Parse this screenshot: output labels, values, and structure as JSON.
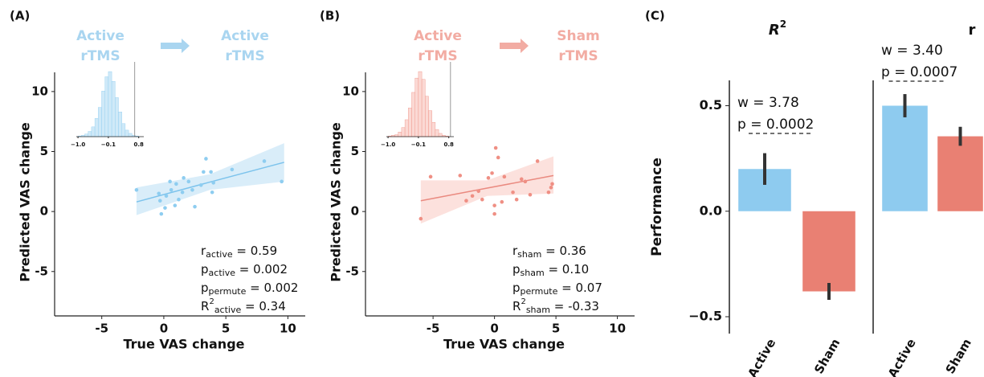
{
  "chart_data": [
    {
      "type": "scatter",
      "panel": "(A)",
      "header": {
        "from": [
          "Active",
          "rTMS"
        ],
        "to": [
          "Active",
          "rTMS"
        ],
        "color": "#a9d5f0"
      },
      "color": "#8ecdf0",
      "fit_color": "#7cc3ec",
      "band_color": "#cfe9f8",
      "xlabel": "True VAS change",
      "ylabel": "Predicted VAS change",
      "xlim": [
        -8.8,
        11.4
      ],
      "ylim": [
        -8.7,
        11.6
      ],
      "xticks": [
        -5,
        0,
        5,
        10
      ],
      "yticks": [
        -5,
        0,
        5,
        10
      ],
      "x": [
        -2.2,
        -0.2,
        0.1,
        -0.3,
        0.2,
        0.6,
        -0.4,
        0.9,
        1.2,
        1.5,
        1.0,
        2.0,
        2.3,
        2.5,
        1.6,
        3.2,
        3.4,
        3.0,
        3.8,
        3.9,
        4.0,
        5.5,
        8.1,
        9.5,
        0.5
      ],
      "y": [
        1.8,
        -0.2,
        0.3,
        0.9,
        1.3,
        1.8,
        1.5,
        0.5,
        1.0,
        1.6,
        2.3,
        2.5,
        1.8,
        0.4,
        2.8,
        3.3,
        4.4,
        2.2,
        3.3,
        1.6,
        2.4,
        3.5,
        4.2,
        2.5,
        2.5
      ],
      "fit": {
        "x": [
          -2.2,
          3.7,
          9.7
        ],
        "y": [
          0.8,
          2.45,
          4.1
        ],
        "lower": [
          -0.3,
          1.8,
          2.5
        ],
        "upper": [
          2.0,
          3.1,
          5.7
        ]
      },
      "stats": [
        {
          "symbol": "r",
          "sub": "active",
          "text": " = 0.59"
        },
        {
          "symbol": "p",
          "sub": "active",
          "text": " = 0.002"
        },
        {
          "symbol": "p",
          "sub": "permute",
          "text": " = 0.002"
        },
        {
          "symbol": "R",
          "sup": "2",
          "sub": "active",
          "text": " = 0.34"
        }
      ],
      "inset": {
        "bins": [
          -1.0,
          -0.9,
          -0.8,
          -0.7,
          -0.6,
          -0.5,
          -0.4,
          -0.3,
          -0.2,
          -0.1,
          0.0,
          0.1,
          0.2,
          0.3,
          0.4,
          0.5,
          0.6,
          0.7,
          0.8
        ],
        "counts": [
          1,
          2,
          4,
          8,
          15,
          28,
          45,
          70,
          92,
          100,
          85,
          60,
          38,
          20,
          10,
          5,
          2,
          1
        ],
        "xlim": [
          -1.05,
          0.95
        ],
        "ylim": [
          0,
          105
        ],
        "xticks": [
          {
            "value": -1.0,
            "label": "−1.0"
          },
          {
            "value": -0.1,
            "label": "−0.1"
          },
          {
            "value": 0.8,
            "label": "0.8"
          }
        ],
        "observed": 0.68
      }
    },
    {
      "type": "scatter",
      "panel": "(B)",
      "header": {
        "from": [
          "Active",
          "rTMS"
        ],
        "to": [
          "Sham",
          "rTMS"
        ],
        "color": "#f2aca3"
      },
      "color": "#ef8f84",
      "fit_color": "#ea8a80",
      "band_color": "#fbd9d4",
      "xlabel": "True VAS change",
      "ylabel": "Predicted VAS change",
      "xlim": [
        -10.5,
        11.4
      ],
      "ylim": [
        -8.7,
        11.6
      ],
      "xticks": [
        -5,
        0,
        5,
        10
      ],
      "yticks": [
        -5,
        0,
        5,
        10
      ],
      "x": [
        -6.0,
        -5.2,
        -2.8,
        -2.3,
        -1.8,
        -1.3,
        -1.0,
        -0.5,
        -0.2,
        0.0,
        0.0,
        0.1,
        0.3,
        0.6,
        0.8,
        1.5,
        1.8,
        2.2,
        2.5,
        3.5,
        4.4,
        4.6,
        4.7,
        2.9
      ],
      "y": [
        -0.6,
        2.9,
        3.0,
        0.9,
        1.3,
        1.7,
        1.0,
        2.8,
        3.2,
        -0.2,
        0.5,
        5.3,
        4.5,
        0.8,
        2.9,
        1.6,
        1.0,
        2.7,
        2.5,
        4.2,
        1.6,
        2.0,
        2.3,
        1.4
      ],
      "fit": {
        "x": [
          -6.0,
          -0.6,
          4.8
        ],
        "y": [
          0.9,
          1.95,
          3.0
        ],
        "lower": [
          -1.0,
          1.3,
          1.5
        ],
        "upper": [
          2.6,
          2.6,
          4.6
        ]
      },
      "stats": [
        {
          "symbol": "r",
          "sub": "sham",
          "text": " = 0.36"
        },
        {
          "symbol": "p",
          "sub": "sham",
          "text": " = 0.10"
        },
        {
          "symbol": "p",
          "sub": "permute",
          "text": " = 0.07"
        },
        {
          "symbol": "R",
          "sup": "2",
          "sub": "sham",
          "text": " = -0.33"
        }
      ],
      "inset": {
        "bins": [
          -1.0,
          -0.9,
          -0.8,
          -0.7,
          -0.6,
          -0.5,
          -0.4,
          -0.3,
          -0.2,
          -0.1,
          0.0,
          0.1,
          0.2,
          0.3,
          0.4,
          0.5,
          0.6,
          0.7,
          0.8
        ],
        "counts": [
          1,
          2,
          3,
          7,
          14,
          26,
          44,
          68,
          90,
          100,
          88,
          62,
          40,
          22,
          11,
          5,
          2,
          1
        ],
        "xlim": [
          -1.05,
          0.95
        ],
        "ylim": [
          0,
          105
        ],
        "xticks": [
          {
            "value": -1.0,
            "label": "−1.0"
          },
          {
            "value": -0.1,
            "label": "−0.1"
          },
          {
            "value": 0.8,
            "label": "0.8"
          }
        ],
        "observed": 0.85
      }
    },
    {
      "type": "bar",
      "panel": "(C)",
      "title": {
        "text": "R",
        "sup": "2"
      },
      "ylabel": "Performance",
      "categories": [
        "Active",
        "Sham"
      ],
      "values": [
        0.2,
        -0.38
      ],
      "errors": [
        0.075,
        0.04
      ],
      "colors": [
        "#8ecbef",
        "#e98073"
      ],
      "ylim": [
        -0.58,
        0.62
      ],
      "yticks": [
        {
          "value": -0.5,
          "label": "−0.5"
        },
        {
          "value": 0.0,
          "label": "0.0"
        },
        {
          "value": 0.5,
          "label": "0.5"
        }
      ],
      "annotation": [
        "w = 3.78",
        "p = 0.0002"
      ]
    },
    {
      "type": "bar",
      "title": {
        "text": "r"
      },
      "categories": [
        "Active",
        "Sham"
      ],
      "values": [
        0.5,
        0.355
      ],
      "errors": [
        0.055,
        0.045
      ],
      "colors": [
        "#8ecbef",
        "#e98073"
      ],
      "ylim": [
        -0.58,
        0.62
      ],
      "annotation": [
        "w = 3.40",
        "p = 0.0007"
      ]
    }
  ]
}
